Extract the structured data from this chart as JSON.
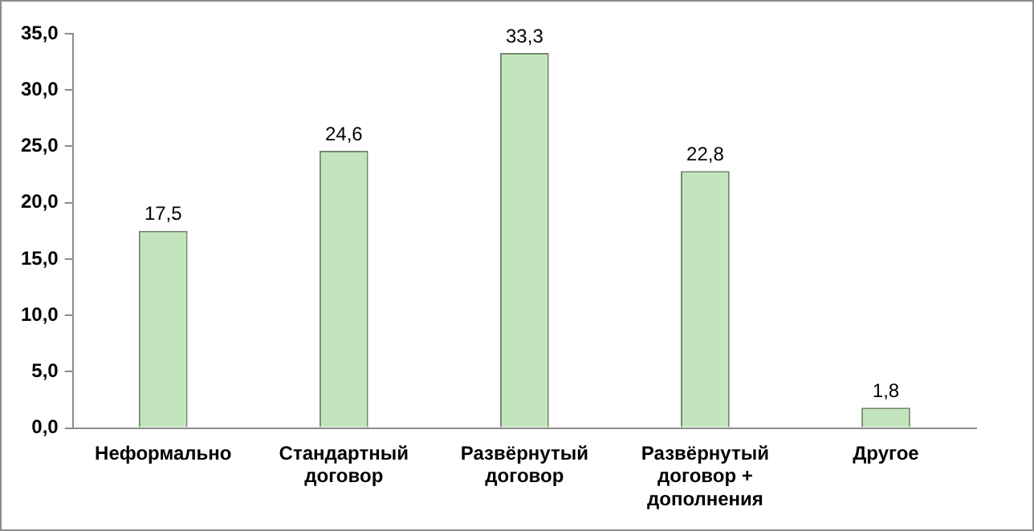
{
  "chart_data": {
    "type": "bar",
    "categories": [
      "Неформально",
      "Стандартный договор",
      "Развёрнутый договор",
      "Развёрнутый договор + дополнения",
      "Другое"
    ],
    "values": [
      17.5,
      24.6,
      33.3,
      22.8,
      1.8
    ],
    "value_labels": [
      "17,5",
      "24,6",
      "33,3",
      "22,8",
      "1,8"
    ],
    "color": "#c3e5bd",
    "ylim": [
      0,
      35
    ],
    "yticks": [
      {
        "value": 0,
        "label": "0,0"
      },
      {
        "value": 5,
        "label": "5,0"
      },
      {
        "value": 10,
        "label": "10,0"
      },
      {
        "value": 15,
        "label": "15,0"
      },
      {
        "value": 20,
        "label": "20,0"
      },
      {
        "value": 25,
        "label": "25,0"
      },
      {
        "value": 30,
        "label": "30,0"
      },
      {
        "value": 35,
        "label": "35,0"
      }
    ],
    "grid": false,
    "legend": false
  }
}
